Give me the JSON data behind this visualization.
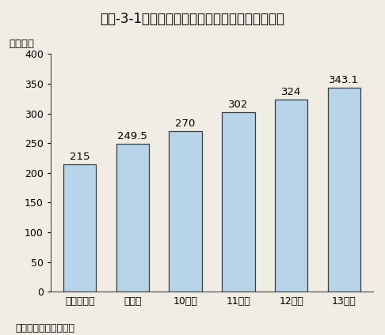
{
  "title": "第３-3-1図　科学技術振興調整費の予算額の推移",
  "ylabel": "（億円）",
  "source": "資料：文部科学省調べ",
  "categories": [
    "平成８年度",
    "９年度",
    "10年度",
    "11年度",
    "12年度",
    "13年度"
  ],
  "values": [
    215,
    249.5,
    270,
    302,
    324,
    343.1
  ],
  "labels": [
    "215",
    "249.5",
    "270",
    "302",
    "324",
    "343.1"
  ],
  "bar_color": "#b8d4e8",
  "bar_edge_color": "#3a3a3a",
  "background_color": "#f0ede4",
  "ylim": [
    0,
    400
  ],
  "yticks": [
    0,
    50,
    100,
    150,
    200,
    250,
    300,
    350,
    400
  ],
  "title_fontsize": 12,
  "label_fontsize": 9.5,
  "tick_fontsize": 9,
  "source_fontsize": 9
}
